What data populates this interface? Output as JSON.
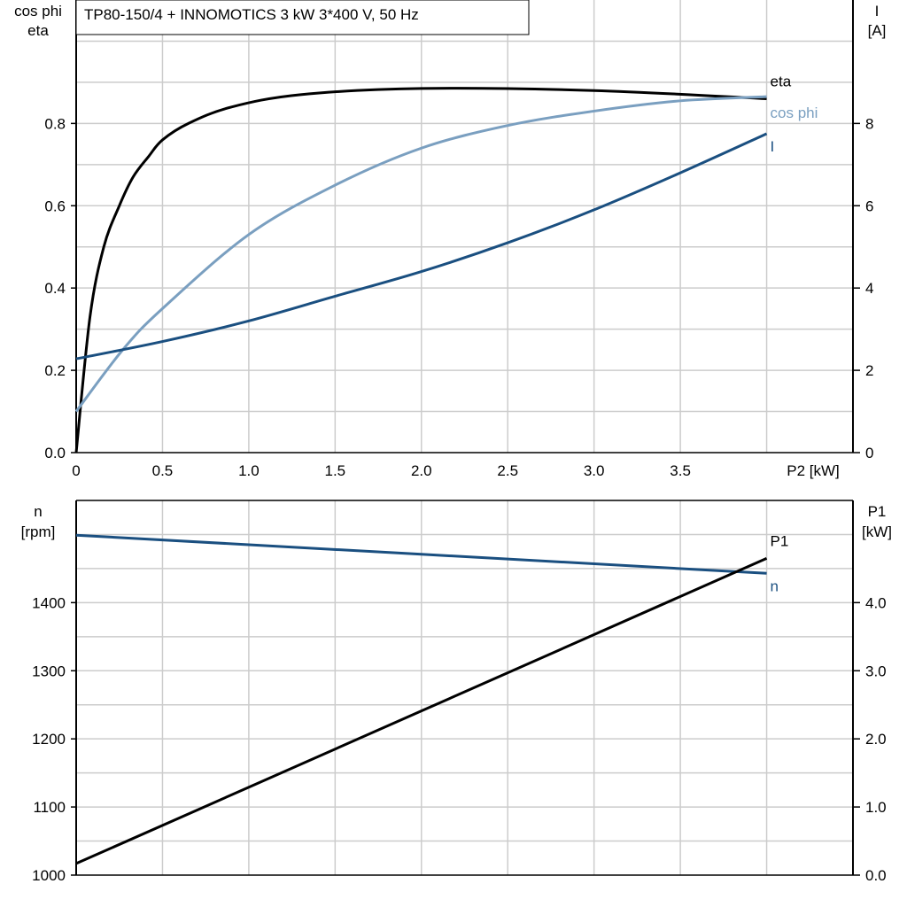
{
  "chart_data": [
    {
      "type": "line",
      "title": "TP80-150/4 + INNOMOTICS   3 kW   3*400 V, 50 Hz",
      "xlabel": "P2 [kW]",
      "ylabel_left": [
        "cos phi",
        "eta"
      ],
      "ylabel_right": [
        "I",
        "[A]"
      ],
      "xlim": [
        0,
        4.5
      ],
      "ylim_left": [
        0,
        1.1
      ],
      "ylim_right": [
        0,
        11
      ],
      "grid": true,
      "x_ticks": [
        "0",
        "0.5",
        "1.0",
        "1.5",
        "2.0",
        "2.5",
        "3.0",
        "3.5"
      ],
      "left_ticks": [
        "0.0",
        "0.2",
        "0.4",
        "0.6",
        "0.8"
      ],
      "right_ticks": [
        "0",
        "2",
        "4",
        "6",
        "8"
      ],
      "series": [
        {
          "name": "eta",
          "axis": "left",
          "color": "#000000",
          "x": [
            0,
            0.08,
            0.16,
            0.25,
            0.33,
            0.42,
            0.5,
            0.65,
            0.9,
            1.3,
            2.0,
            3.0,
            4.0
          ],
          "y": [
            0,
            0.33,
            0.5,
            0.6,
            0.67,
            0.72,
            0.76,
            0.8,
            0.84,
            0.87,
            0.885,
            0.88,
            0.86
          ]
        },
        {
          "name": "cos phi",
          "axis": "left",
          "color": "#7a9fc0",
          "x": [
            0,
            0.27,
            0.5,
            1.0,
            1.5,
            2.0,
            2.5,
            3.0,
            3.5,
            4.0
          ],
          "y": [
            0.1,
            0.25,
            0.35,
            0.53,
            0.65,
            0.74,
            0.795,
            0.83,
            0.855,
            0.865
          ]
        },
        {
          "name": "I",
          "axis": "right",
          "color": "#1a4f80",
          "x": [
            0,
            0.5,
            1.0,
            1.5,
            2.0,
            2.5,
            3.0,
            3.5,
            4.0
          ],
          "y": [
            2.28,
            2.7,
            3.2,
            3.8,
            4.4,
            5.1,
            5.9,
            6.8,
            7.75
          ]
        }
      ]
    },
    {
      "type": "line",
      "xlim": [
        0,
        4.5
      ],
      "ylabel_left": [
        "n",
        "[rpm]"
      ],
      "ylabel_right": [
        "P1",
        "[kW]"
      ],
      "ylim_left": [
        1000,
        1550
      ],
      "ylim_right": [
        0,
        5.5
      ],
      "grid": true,
      "left_ticks": [
        "1000",
        "1100",
        "1200",
        "1300",
        "1400"
      ],
      "right_ticks": [
        "0.0",
        "1.0",
        "2.0",
        "3.0",
        "4.0"
      ],
      "series": [
        {
          "name": "n",
          "axis": "left",
          "color": "#1a4f80",
          "x": [
            0,
            4.0
          ],
          "y": [
            1499,
            1443
          ]
        },
        {
          "name": "P1",
          "axis": "right",
          "color": "#000000",
          "x": [
            0,
            4.0
          ],
          "y": [
            0.17,
            4.65
          ]
        }
      ]
    }
  ]
}
